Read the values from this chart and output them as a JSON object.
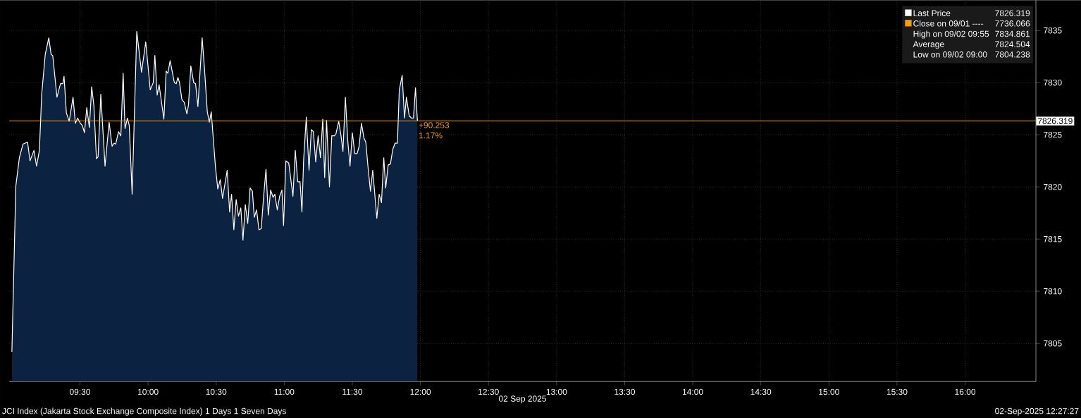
{
  "chart_data": {
    "type": "area",
    "xlabel": "02 Sep 2025",
    "x": [
      9.0,
      9.029,
      9.055,
      9.081,
      9.115,
      9.133,
      9.162,
      9.181,
      9.202,
      9.219,
      9.245,
      9.271,
      9.288,
      9.3,
      9.331,
      9.357,
      9.374,
      9.383,
      9.4,
      9.421,
      9.449,
      9.466,
      9.483,
      9.503,
      9.517,
      9.533,
      9.55,
      9.569,
      9.586,
      9.602,
      9.621,
      9.633,
      9.653,
      9.684,
      9.714,
      9.736,
      9.75,
      9.762,
      9.783,
      9.8,
      9.817,
      9.831,
      9.848,
      9.862,
      9.883,
      9.917,
      9.952,
      9.983,
      10.016,
      10.038,
      10.05,
      10.067,
      10.081,
      10.116,
      10.133,
      10.145,
      10.162,
      10.193,
      10.207,
      10.219,
      10.231,
      10.248,
      10.266,
      10.285,
      10.297,
      10.314,
      10.335,
      10.349,
      10.366,
      10.397,
      10.414,
      10.435,
      10.45,
      10.464,
      10.495,
      10.512,
      10.53,
      10.547,
      10.581,
      10.599,
      10.613,
      10.63,
      10.647,
      10.664,
      10.681,
      10.697,
      10.714,
      10.732,
      10.749,
      10.766,
      10.78,
      10.797,
      10.814,
      10.831,
      10.848,
      10.866,
      10.883,
      10.9,
      10.918,
      10.931,
      10.949,
      10.966,
      10.983,
      10.995,
      11.012,
      11.033,
      11.064,
      11.081,
      11.099,
      11.116,
      11.13,
      11.142,
      11.162,
      11.182,
      11.199,
      11.214,
      11.231,
      11.249,
      11.266,
      11.283,
      11.297,
      11.311,
      11.332,
      11.349,
      11.369,
      11.38,
      11.4,
      11.417,
      11.431,
      11.449,
      11.466,
      11.483,
      11.5,
      11.518,
      11.535,
      11.55,
      11.567,
      11.585,
      11.599,
      11.616,
      11.633,
      11.65,
      11.68,
      11.697,
      11.714,
      11.731,
      11.745,
      11.763,
      11.78,
      11.797,
      11.814,
      11.831,
      11.845,
      11.866,
      11.883,
      11.897,
      11.918,
      11.935,
      11.949,
      11.964,
      11.978
    ],
    "series": [
      {
        "name": "Last Price",
        "color": "#ffffff",
        "values": [
          7804.2,
          7820.1,
          7822.8,
          7824.1,
          7824.3,
          7822.5,
          7823.5,
          7822.0,
          7823.5,
          7828.9,
          7832.7,
          7834.3,
          7832.7,
          7832.6,
          7828.6,
          7829.9,
          7829.9,
          7830.6,
          7827.1,
          7826.3,
          7828.6,
          7826.1,
          7826.6,
          7826.1,
          7825.9,
          7825.2,
          7827.6,
          7825.7,
          7829.6,
          7827.8,
          7822.7,
          7822.9,
          7828.9,
          7822.0,
          7826.2,
          7823.9,
          7824.2,
          7824.1,
          7825.3,
          7824.9,
          7830.9,
          7825.6,
          7826.6,
          7825.9,
          7819.3,
          7834.9,
          7831.0,
          7833.9,
          7829.3,
          7830.0,
          7832.6,
          7828.8,
          7829.8,
          7826.5,
          7831.1,
          7830.9,
          7832.1,
          7830.0,
          7829.9,
          7830.5,
          7830.0,
          7828.4,
          7828.1,
          7827.0,
          7827.9,
          7831.6,
          7830.0,
          7829.9,
          7827.7,
          7834.3,
          7831.4,
          7827.2,
          7826.2,
          7827.2,
          7821.9,
          7819.8,
          7820.7,
          7818.9,
          7821.6,
          7817.6,
          7819.3,
          7815.9,
          7818.8,
          7817.2,
          7818.0,
          7814.9,
          7818.3,
          7816.5,
          7819.9,
          7819.6,
          7817.1,
          7817.8,
          7815.9,
          7816.0,
          7819.0,
          7821.7,
          7817.3,
          7819.7,
          7819.0,
          7819.3,
          7817.8,
          7819.1,
          7819.7,
          7816.3,
          7822.5,
          7822.3,
          7819.1,
          7823.5,
          7820.5,
          7820.5,
          7817.6,
          7822.5,
          7826.7,
          7821.6,
          7825.5,
          7825.3,
          7822.4,
          7824.9,
          7822.8,
          7826.5,
          7820.9,
          7826.4,
          7820.0,
          7824.9,
          7824.9,
          7825.1,
          7826.3,
          7824.9,
          7823.4,
          7828.6,
          7824.5,
          7822.0,
          7825.2,
          7823.2,
          7823.2,
          7823.9,
          7826.1,
          7824.7,
          7824.3,
          7821.8,
          7819.6,
          7821.6,
          7817.0,
          7819.3,
          7818.5,
          7822.8,
          7819.9,
          7822.1,
          7822.2,
          7823.6,
          7824.2,
          7824.2,
          7829.3,
          7830.7,
          7826.6,
          7828.6,
          7826.8,
          7826.6,
          7826.6,
          7829.5,
          7826.3
        ]
      }
    ],
    "xlim": [
      8.98,
      16.52
    ],
    "xticks": [
      {
        "value": 9.5,
        "label": "09:30"
      },
      {
        "value": 10,
        "label": "10:00"
      },
      {
        "value": 10.5,
        "label": "10:30"
      },
      {
        "value": 11,
        "label": "11:00"
      },
      {
        "value": 11.5,
        "label": "11:30"
      },
      {
        "value": 12,
        "label": "12:00"
      },
      {
        "value": 12.5,
        "label": "12:30"
      },
      {
        "value": 13,
        "label": "13:00"
      },
      {
        "value": 13.5,
        "label": "13:30"
      },
      {
        "value": 14,
        "label": "14:00"
      },
      {
        "value": 14.5,
        "label": "14:30"
      },
      {
        "value": 15,
        "label": "15:00"
      },
      {
        "value": 15.5,
        "label": "15:30"
      },
      {
        "value": 16,
        "label": "16:00"
      }
    ],
    "ylim": [
      7801.35,
      7837.9
    ],
    "yticks": [
      7805,
      7810,
      7815,
      7820,
      7825,
      7830,
      7835
    ],
    "ref_lines": [
      {
        "axis": "y",
        "value": 7826.319,
        "label": "7826.319",
        "color": "#f39c12"
      }
    ],
    "annotations": [
      "+90.253",
      "1.17%",
      "JCI Index (Jakarta Stock Exchange Composite Index) 1 Days 1 Seven Days",
      "02-Sep-2025 12:27:27",
      "7826.319",
      "Close on 09/01 ----",
      "7736.066",
      "High on 09/02 09:55",
      "7834.861",
      "Average",
      "7824.504",
      "Low on 09/02 09:00",
      "7804.238"
    ],
    "grid": true,
    "legend": "top right"
  }
}
